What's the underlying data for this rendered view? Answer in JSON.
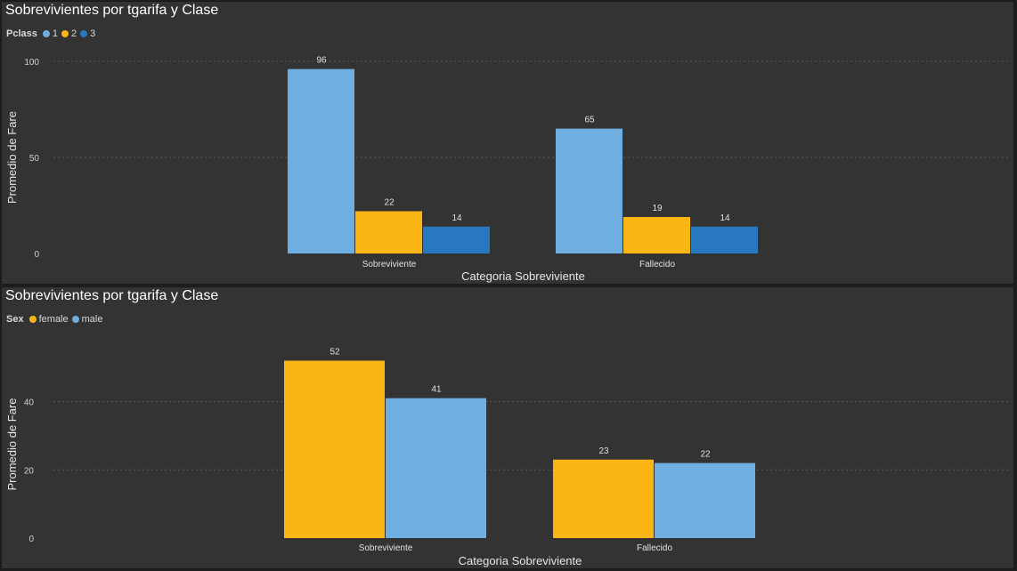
{
  "charts": [
    {
      "id": "top",
      "title": "Sobrevivientes por tgarifa y Clase",
      "legend_title": "Pclass",
      "chart_data": {
        "type": "bar",
        "title": "Sobrevivientes por tgarifa y Clase",
        "xlabel": "Categoria Sobreviviente",
        "ylabel": "Promedio de Fare",
        "categories": [
          "Sobreviviente",
          "Fallecido"
        ],
        "series": [
          {
            "name": "1",
            "color": "#6faee0",
            "values": [
              96,
              65
            ]
          },
          {
            "name": "2",
            "color": "#fbb515",
            "values": [
              22,
              19
            ]
          },
          {
            "name": "3",
            "color": "#2878c0",
            "values": [
              14,
              14
            ]
          }
        ],
        "ylim": [
          0,
          100
        ],
        "yticks": [
          0,
          50,
          100
        ],
        "grid": true,
        "legend": "top-left"
      }
    },
    {
      "id": "bottom",
      "title": "Sobrevivientes por tgarifa y Clase",
      "legend_title": "Sex",
      "chart_data": {
        "type": "bar",
        "title": "Sobrevivientes por tgarifa y Clase",
        "xlabel": "Categoria Sobreviviente",
        "ylabel": "Promedio de Fare",
        "categories": [
          "Sobreviviente",
          "Fallecido"
        ],
        "series": [
          {
            "name": "female",
            "color": "#fbb515",
            "values": [
              52,
              23
            ]
          },
          {
            "name": "male",
            "color": "#6faee0",
            "values": [
              41,
              22
            ]
          }
        ],
        "ylim": [
          0,
          55
        ],
        "yticks": [
          0,
          20,
          40
        ],
        "grid": true,
        "legend": "top-left"
      }
    }
  ]
}
